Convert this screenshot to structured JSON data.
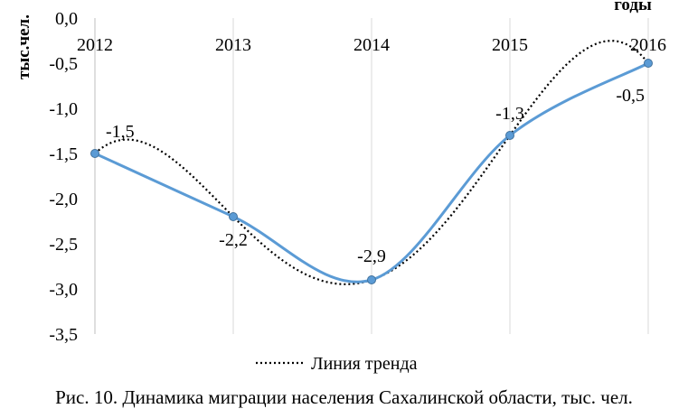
{
  "chart_data": {
    "type": "line",
    "title": "",
    "xlabel": "годы",
    "ylabel": "тыс.чел.",
    "x": [
      "2012",
      "2013",
      "2014",
      "2015",
      "2016"
    ],
    "series": [
      {
        "values": [
          -1.5,
          -2.2,
          -2.9,
          -1.3,
          -0.5
        ],
        "color": "#5b9bd5",
        "smooth": true
      },
      {
        "name": "Линия тренда",
        "style": "dotted",
        "color": "#000000"
      }
    ],
    "data_labels": [
      "-1,5",
      "-2,2",
      "-2,9",
      "-1,3",
      "-0,5"
    ],
    "y_ticks": [
      0,
      -0.5,
      -1,
      -1.5,
      -2,
      -2.5,
      -3,
      -3.5
    ],
    "y_tick_labels": [
      "0,0",
      "-0,5",
      "-1,0",
      "-1,5",
      "-2,0",
      "-2,5",
      "-3,0",
      "-3,5"
    ],
    "ylim": [
      -3.5,
      0
    ],
    "grid": "vertical",
    "legend": "bottom"
  },
  "caption": "Рис. 10. Динамика миграции населения Сахалинской области, тыс. чел."
}
